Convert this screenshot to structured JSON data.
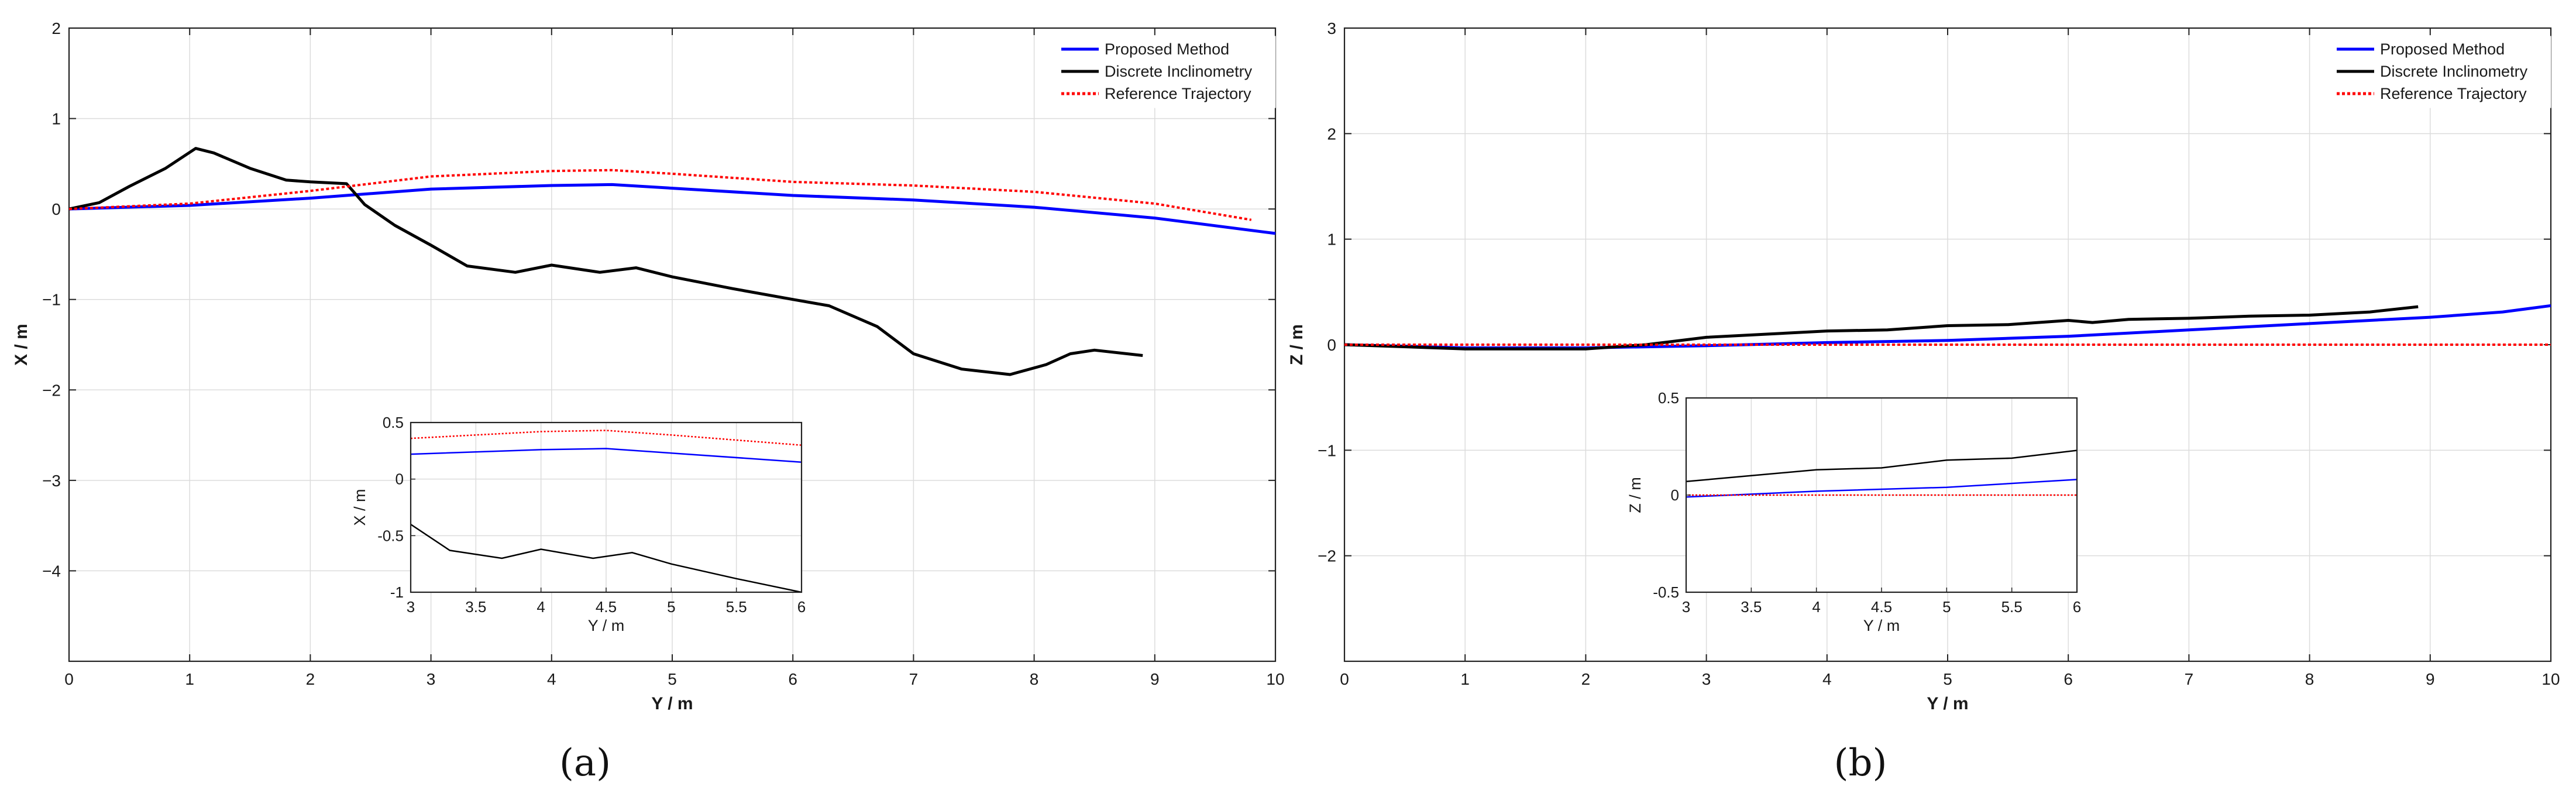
{
  "chart_data": [
    {
      "type": "line",
      "caption": "(a)",
      "xlabel": "Y / m",
      "ylabel": "X / m",
      "xlim": [
        0,
        10
      ],
      "ylim": [
        -5,
        2
      ],
      "xticks": [
        0,
        1,
        2,
        3,
        4,
        5,
        6,
        7,
        8,
        9,
        10
      ],
      "yticks": [
        -4,
        -3,
        -2,
        -1,
        0,
        1,
        2
      ],
      "grid": true,
      "legend_position": "top-right",
      "series": [
        {
          "name": "Proposed Method",
          "color": "#0000ff",
          "style": "solid",
          "points": [
            [
              0,
              0
            ],
            [
              1,
              0.04
            ],
            [
              2,
              0.12
            ],
            [
              3,
              0.22
            ],
            [
              4,
              0.26
            ],
            [
              4.5,
              0.27
            ],
            [
              5,
              0.23
            ],
            [
              6,
              0.15
            ],
            [
              7,
              0.1
            ],
            [
              8,
              0.02
            ],
            [
              9,
              -0.1
            ],
            [
              10,
              -0.27
            ]
          ]
        },
        {
          "name": "Discrete Inclinometry",
          "color": "#000000",
          "style": "solid",
          "points": [
            [
              0,
              0
            ],
            [
              0.25,
              0.07
            ],
            [
              0.5,
              0.25
            ],
            [
              0.8,
              0.45
            ],
            [
              1.05,
              0.67
            ],
            [
              1.2,
              0.62
            ],
            [
              1.5,
              0.45
            ],
            [
              1.8,
              0.32
            ],
            [
              2,
              0.3
            ],
            [
              2.3,
              0.28
            ],
            [
              2.45,
              0.05
            ],
            [
              2.7,
              -0.18
            ],
            [
              3,
              -0.4
            ],
            [
              3.3,
              -0.63
            ],
            [
              3.7,
              -0.7
            ],
            [
              4,
              -0.62
            ],
            [
              4.4,
              -0.7
            ],
            [
              4.7,
              -0.65
            ],
            [
              5,
              -0.75
            ],
            [
              5.5,
              -0.88
            ],
            [
              6,
              -1.0
            ],
            [
              6.3,
              -1.07
            ],
            [
              6.7,
              -1.3
            ],
            [
              7,
              -1.6
            ],
            [
              7.4,
              -1.77
            ],
            [
              7.8,
              -1.83
            ],
            [
              8.1,
              -1.72
            ],
            [
              8.3,
              -1.6
            ],
            [
              8.5,
              -1.56
            ],
            [
              8.9,
              -1.62
            ]
          ]
        },
        {
          "name": "Reference Trajectory",
          "color": "#ff0000",
          "style": "dotted",
          "points": [
            [
              0,
              0
            ],
            [
              1,
              0.06
            ],
            [
              2,
              0.2
            ],
            [
              3,
              0.36
            ],
            [
              4,
              0.42
            ],
            [
              4.5,
              0.43
            ],
            [
              5,
              0.39
            ],
            [
              6,
              0.3
            ],
            [
              7,
              0.26
            ],
            [
              8,
              0.19
            ],
            [
              9,
              0.06
            ],
            [
              9.8,
              -0.12
            ]
          ]
        }
      ],
      "inset": {
        "xlabel": "Y / m",
        "ylabel": "X / m",
        "xlim": [
          3,
          6
        ],
        "ylim": [
          -1,
          0.5
        ],
        "xticks": [
          3,
          3.5,
          4,
          4.5,
          5,
          5.5,
          6
        ],
        "yticks": [
          -1,
          -0.5,
          0,
          0.5
        ],
        "xtick_labels": [
          "3",
          "3.5",
          "4",
          "4.5",
          "5",
          "5.5",
          "6"
        ],
        "ytick_labels": [
          "-1",
          "-0.5",
          "0",
          "0.5"
        ]
      }
    },
    {
      "type": "line",
      "caption": "(b)",
      "xlabel": "Y / m",
      "ylabel": "Z / m",
      "xlim": [
        0,
        10
      ],
      "ylim": [
        -3,
        3
      ],
      "xticks": [
        0,
        1,
        2,
        3,
        4,
        5,
        6,
        7,
        8,
        9,
        10
      ],
      "yticks": [
        -2,
        -1,
        0,
        1,
        2,
        3
      ],
      "grid": true,
      "legend_position": "top-right",
      "series": [
        {
          "name": "Proposed Method",
          "color": "#0000ff",
          "style": "solid",
          "points": [
            [
              0,
              0
            ],
            [
              1,
              -0.03
            ],
            [
              2,
              -0.03
            ],
            [
              3,
              -0.01
            ],
            [
              4,
              0.02
            ],
            [
              5,
              0.04
            ],
            [
              6,
              0.08
            ],
            [
              7,
              0.14
            ],
            [
              8,
              0.2
            ],
            [
              9,
              0.26
            ],
            [
              9.6,
              0.31
            ],
            [
              10,
              0.37
            ]
          ]
        },
        {
          "name": "Discrete Inclinometry",
          "color": "#000000",
          "style": "solid",
          "points": [
            [
              0,
              0
            ],
            [
              1,
              -0.04
            ],
            [
              2,
              -0.04
            ],
            [
              2.5,
              0.0
            ],
            [
              3,
              0.07
            ],
            [
              3.5,
              0.1
            ],
            [
              4,
              0.13
            ],
            [
              4.5,
              0.14
            ],
            [
              5,
              0.18
            ],
            [
              5.5,
              0.19
            ],
            [
              6,
              0.23
            ],
            [
              6.2,
              0.21
            ],
            [
              6.5,
              0.24
            ],
            [
              7,
              0.25
            ],
            [
              7.5,
              0.27
            ],
            [
              8,
              0.28
            ],
            [
              8.5,
              0.31
            ],
            [
              8.9,
              0.36
            ]
          ]
        },
        {
          "name": "Reference Trajectory",
          "color": "#ff0000",
          "style": "dotted",
          "points": [
            [
              0,
              0
            ],
            [
              10,
              0
            ]
          ]
        }
      ],
      "inset": {
        "xlabel": "Y / m",
        "ylabel": "Z / m",
        "xlim": [
          3,
          6
        ],
        "ylim": [
          -0.5,
          0.5
        ],
        "xticks": [
          3,
          3.5,
          4,
          4.5,
          5,
          5.5,
          6
        ],
        "yticks": [
          -0.5,
          0,
          0.5
        ],
        "xtick_labels": [
          "3",
          "3.5",
          "4",
          "4.5",
          "5",
          "5.5",
          "6"
        ],
        "ytick_labels": [
          "-0.5",
          "0",
          "0.5"
        ]
      }
    }
  ]
}
